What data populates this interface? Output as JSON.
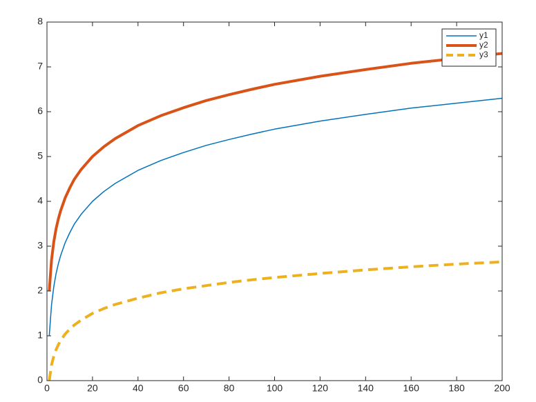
{
  "chart_data": {
    "type": "line",
    "x": [
      1,
      2,
      3,
      4,
      5,
      6,
      8,
      10,
      12,
      15,
      20,
      25,
      30,
      40,
      50,
      60,
      70,
      80,
      90,
      100,
      120,
      140,
      160,
      180,
      200
    ],
    "series": [
      {
        "name": "y1",
        "color": "#0072bd",
        "width": 1.5,
        "dashed": false,
        "values": [
          1,
          1.69,
          2.1,
          2.39,
          2.61,
          2.79,
          3.08,
          3.3,
          3.49,
          3.71,
          4.0,
          4.22,
          4.4,
          4.69,
          4.91,
          5.09,
          5.25,
          5.38,
          5.5,
          5.61,
          5.79,
          5.94,
          6.08,
          6.19,
          6.3
        ]
      },
      {
        "name": "y2",
        "color": "#d95319",
        "width": 4,
        "dashed": false,
        "values": [
          2,
          2.69,
          3.1,
          3.39,
          3.61,
          3.79,
          4.08,
          4.3,
          4.49,
          4.71,
          5.0,
          5.22,
          5.4,
          5.69,
          5.91,
          6.09,
          6.25,
          6.38,
          6.5,
          6.61,
          6.79,
          6.94,
          7.08,
          7.19,
          7.3
        ]
      },
      {
        "name": "y3",
        "color": "#edb120",
        "width": 4,
        "dashed": true,
        "values": [
          0,
          0.35,
          0.55,
          0.69,
          0.8,
          0.9,
          1.04,
          1.15,
          1.24,
          1.35,
          1.5,
          1.61,
          1.7,
          1.84,
          1.96,
          2.05,
          2.12,
          2.19,
          2.25,
          2.3,
          2.39,
          2.47,
          2.54,
          2.6,
          2.65
        ]
      }
    ],
    "xlim": [
      0,
      200
    ],
    "xticks": [
      0,
      20,
      40,
      60,
      80,
      100,
      120,
      140,
      160,
      180,
      200
    ],
    "ylim": [
      0,
      8
    ],
    "yticks": [
      0,
      1,
      2,
      3,
      4,
      5,
      6,
      7,
      8
    ],
    "legend": "top-right"
  }
}
